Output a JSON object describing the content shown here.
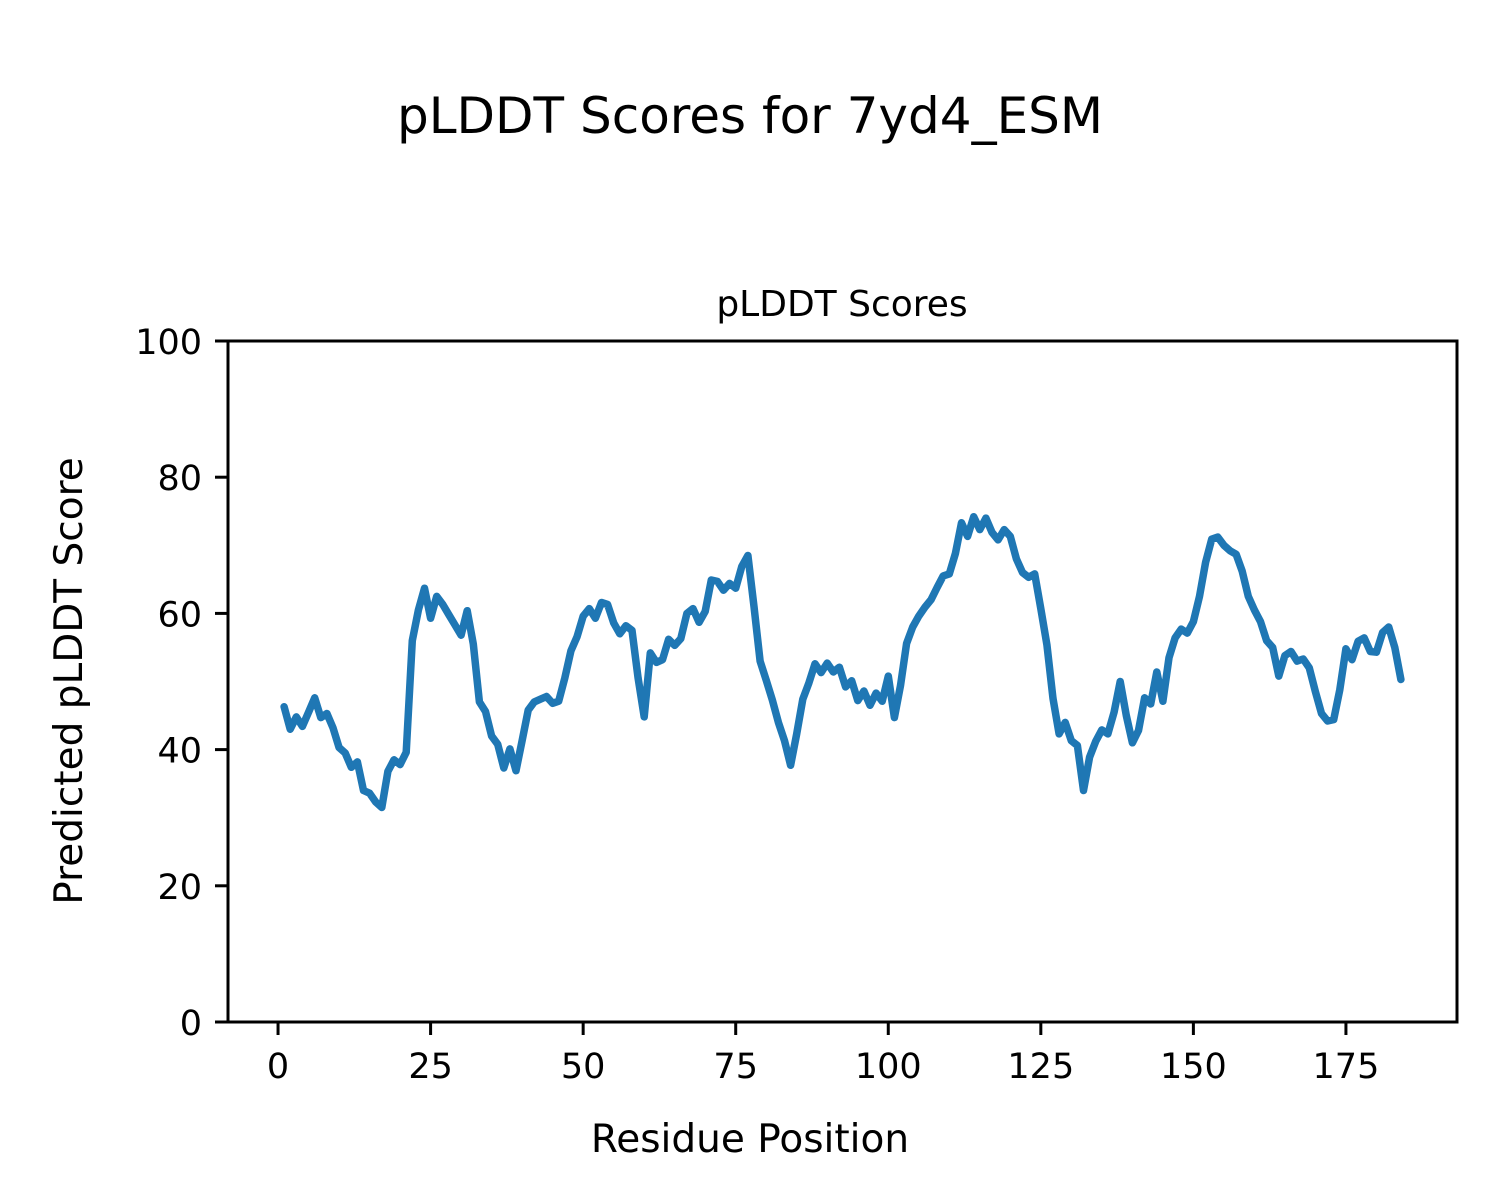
{
  "figure": {
    "suptitle": "pLDDT Scores for 7yd4_ESM",
    "background_color": "#ffffff",
    "text_color": "#000000",
    "spine_color": "#000000"
  },
  "chart_data": {
    "type": "line",
    "title": "pLDDT Scores",
    "xlabel": "Residue Position",
    "ylabel": "Predicted pLDDT Score",
    "xlim": [
      -8.2,
      193.2
    ],
    "ylim": [
      0,
      100
    ],
    "x_ticks": [
      0,
      25,
      50,
      75,
      100,
      125,
      150,
      175
    ],
    "y_ticks": [
      0,
      20,
      40,
      60,
      80,
      100
    ],
    "grid": false,
    "legend_position": "none",
    "series": [
      {
        "name": "pLDDT",
        "color": "#1f77b4",
        "line_width": 7.5,
        "x": [
          1,
          2,
          3,
          4,
          5,
          6,
          7,
          8,
          9,
          10,
          11,
          12,
          13,
          14,
          15,
          16,
          17,
          18,
          19,
          20,
          21,
          22,
          23,
          24,
          25,
          26,
          27,
          28,
          29,
          30,
          31,
          32,
          33,
          34,
          35,
          36,
          37,
          38,
          39,
          40,
          41,
          42,
          43,
          44,
          45,
          46,
          47,
          48,
          49,
          50,
          51,
          52,
          53,
          54,
          55,
          56,
          57,
          58,
          59,
          60,
          61,
          62,
          63,
          64,
          65,
          66,
          67,
          68,
          69,
          70,
          71,
          72,
          73,
          74,
          75,
          76,
          77,
          78,
          79,
          80,
          81,
          82,
          83,
          84,
          85,
          86,
          87,
          88,
          89,
          90,
          91,
          92,
          93,
          94,
          95,
          96,
          97,
          98,
          99,
          100,
          101,
          102,
          103,
          104,
          105,
          106,
          107,
          108,
          109,
          110,
          111,
          112,
          113,
          114,
          115,
          116,
          117,
          118,
          119,
          120,
          121,
          122,
          123,
          124,
          125,
          126,
          127,
          128,
          129,
          130,
          131,
          132,
          133,
          134,
          135,
          136,
          137,
          138,
          139,
          140,
          141,
          142,
          143,
          144,
          145,
          146,
          147,
          148,
          149,
          150,
          151,
          152,
          153,
          154,
          155,
          156,
          157,
          158,
          159,
          160,
          161,
          162,
          163,
          164,
          165,
          166,
          167,
          168,
          169,
          170,
          171,
          172,
          173,
          174,
          175,
          176,
          177,
          178,
          179,
          180,
          181,
          182,
          183,
          184
        ],
        "values": [
          46.3,
          43.0,
          44.8,
          43.4,
          45.5,
          47.6,
          44.7,
          45.3,
          43.2,
          40.3,
          39.5,
          37.4,
          38.2,
          34.0,
          33.6,
          32.3,
          31.5,
          36.8,
          38.5,
          37.8,
          39.6,
          56.0,
          60.5,
          63.7,
          59.3,
          62.5,
          61.3,
          59.8,
          58.3,
          56.8,
          60.4,
          55.5,
          47.0,
          45.6,
          42.0,
          40.8,
          37.3,
          40.1,
          36.9,
          41.3,
          45.8,
          47.0,
          47.4,
          47.8,
          46.8,
          47.1,
          50.5,
          54.5,
          56.6,
          59.6,
          60.7,
          59.3,
          61.6,
          61.3,
          58.6,
          57.0,
          58.2,
          57.5,
          50.5,
          44.8,
          54.2,
          52.8,
          53.2,
          56.2,
          55.3,
          56.3,
          60.0,
          60.7,
          58.7,
          60.3,
          64.9,
          64.7,
          63.4,
          64.4,
          63.7,
          66.9,
          68.5,
          61.0,
          53.0,
          50.2,
          47.3,
          44.0,
          41.3,
          37.7,
          42.3,
          47.4,
          49.8,
          52.6,
          51.3,
          52.7,
          51.4,
          52.1,
          49.2,
          50.1,
          47.2,
          48.6,
          46.5,
          48.3,
          47.1,
          50.8,
          44.7,
          49.4,
          55.6,
          58.0,
          59.6,
          60.9,
          62.0,
          63.8,
          65.5,
          65.8,
          68.8,
          73.3,
          71.3,
          74.2,
          72.3,
          74.0,
          71.9,
          70.8,
          72.3,
          71.3,
          68.0,
          66.0,
          65.3,
          65.8,
          60.7,
          55.4,
          47.5,
          42.3,
          44.0,
          41.3,
          40.6,
          34.0,
          38.9,
          41.2,
          42.9,
          42.3,
          45.5,
          50.0,
          45.0,
          41.0,
          42.8,
          47.6,
          46.7,
          51.4,
          47.1,
          53.5,
          56.4,
          57.7,
          57.1,
          58.8,
          62.5,
          67.5,
          70.9,
          71.2,
          70.0,
          69.2,
          68.7,
          66.2,
          62.5,
          60.5,
          58.8,
          56.0,
          55.0,
          50.8,
          53.8,
          54.4,
          53.0,
          53.3,
          52.0,
          48.5,
          45.3,
          44.2,
          44.4,
          48.8,
          54.8,
          53.2,
          55.9,
          56.4,
          54.4,
          54.3,
          57.2,
          58.0,
          55.0,
          50.3
        ]
      }
    ]
  }
}
